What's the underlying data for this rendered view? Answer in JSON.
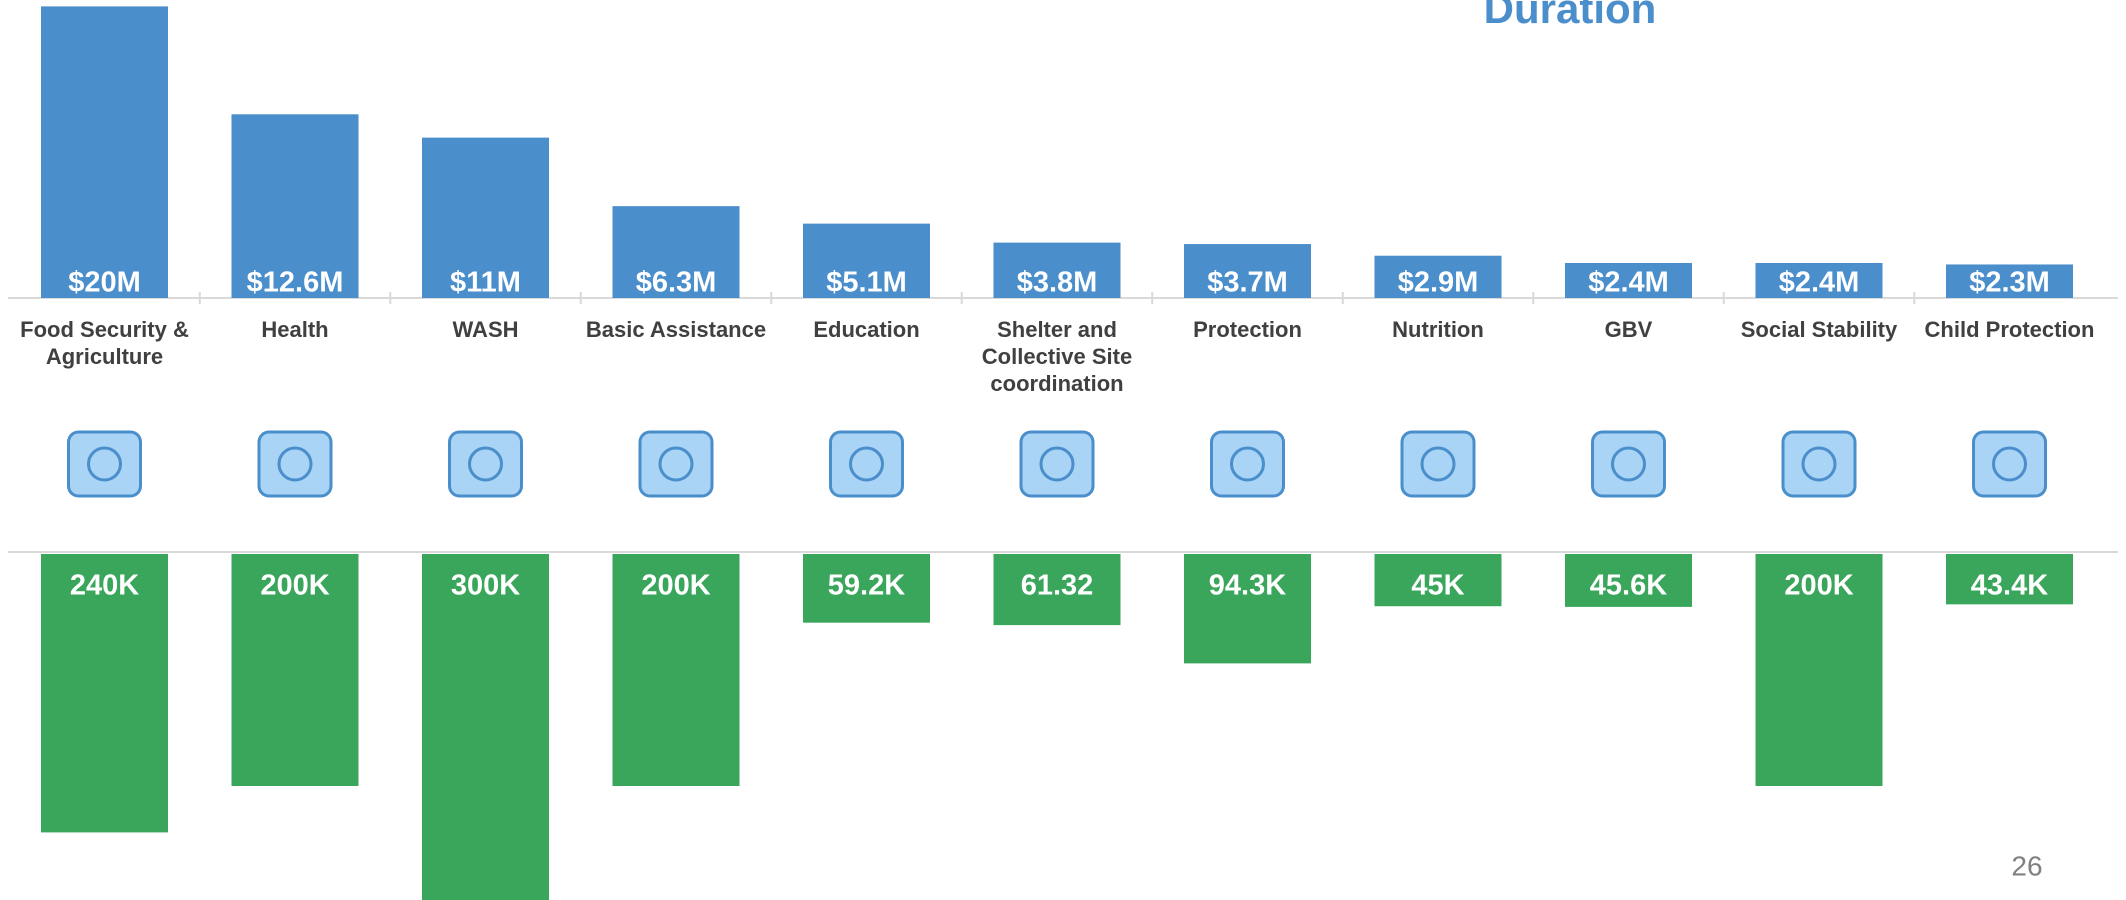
{
  "chart_data": [
    {
      "type": "bar",
      "title": "Duration",
      "categories": [
        "Food Security & Agriculture",
        "Health",
        "WASH",
        "Basic Assistance",
        "Education",
        "Shelter and Collective Site coordination",
        "Protection",
        "Nutrition",
        "GBV",
        "Social Stability",
        "Child Protection"
      ],
      "values": [
        20,
        12.6,
        11,
        6.3,
        5.1,
        3.8,
        3.7,
        2.9,
        2.4,
        2.4,
        2.3
      ],
      "value_labels": [
        "$20M",
        "$12.6M",
        "$11M",
        "$6.3M",
        "$5.1M",
        "$3.8M",
        "$3.7M",
        "$2.9M",
        "$2.4M",
        "$2.4M",
        "$2.3M"
      ],
      "color": "#4a8ecb"
    },
    {
      "type": "bar",
      "values": [
        240,
        200,
        300,
        200,
        59.2,
        61.32,
        94.3,
        45,
        45.6,
        200,
        43.4
      ],
      "value_labels": [
        "240K",
        "200K",
        "300K",
        "200K",
        "59.2K",
        "61.32",
        "94.3K",
        "45K",
        "45.6K",
        "200K",
        "43.4K"
      ],
      "color": "#3aa65b"
    }
  ],
  "page_number": "26"
}
